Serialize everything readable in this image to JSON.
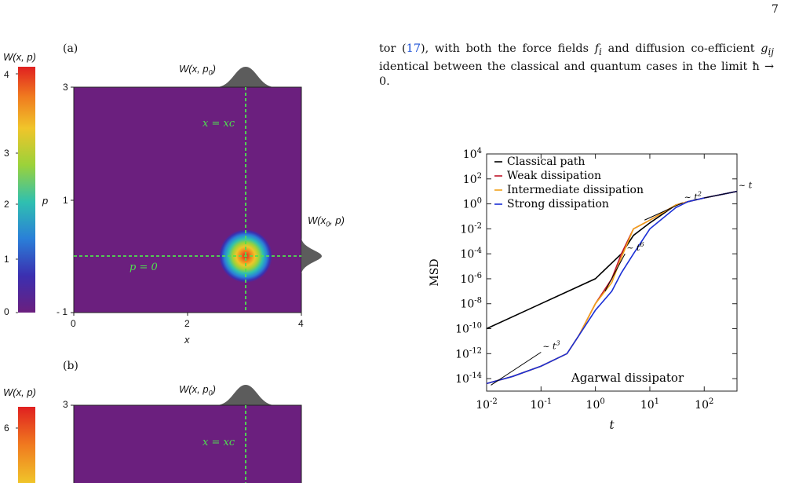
{
  "page_number": "7",
  "body_text": {
    "part1": "tor (",
    "ref": "17",
    "part2": "), with both the force fields ",
    "sym_f": "f",
    "sub_i": "i",
    "part3": " and diffusion co-efficient ",
    "sym_g": "g",
    "sub_ij": "ij",
    "part4": " identical between the classical and quantum cases in the limit ħ → 0."
  },
  "panel_a": {
    "tag": "(a)",
    "colorbar_title": "W(x, p)",
    "colorbar_ticks": [
      "4",
      "3",
      "2",
      "1",
      "0"
    ],
    "top_marginal_label": "W(x, p0)",
    "right_marginal_label": "W(x0, p)",
    "ylabel": "p",
    "xlabel": "x",
    "y_ticks": [
      "3",
      "1",
      "- 1"
    ],
    "x_ticks": [
      "0",
      "2",
      "4"
    ],
    "vline_label": "x = xc",
    "hline_label": "p = 0",
    "gaussian_center": {
      "x": 3,
      "p": 0
    }
  },
  "panel_b": {
    "tag": "(b)",
    "colorbar_title": "W(x, p)",
    "colorbar_ticks": [
      "6"
    ],
    "top_marginal_label": "W(x, p0)",
    "y_ticks": [
      "3"
    ],
    "vline_label": "x = xc"
  },
  "colors": {
    "background_purple": "#6b1f7e",
    "guide_green": "#4fe04f",
    "marginal_gray": "#5c5c5c",
    "classical": "#000000",
    "weak": "#c0162a",
    "intermediate": "#f2a21a",
    "strong": "#1a2fd6"
  },
  "chart_data": {
    "type": "line",
    "xlabel": "t",
    "ylabel": "MSD",
    "x_scale": "log",
    "y_scale": "log",
    "xlim": [
      0.01,
      400
    ],
    "ylim": [
      1e-15,
      10000.0
    ],
    "x_tick_labels": [
      "10^-2",
      "10^-1",
      "10^0",
      "10^1",
      "10^2"
    ],
    "y_tick_labels": [
      "10^4",
      "10^2",
      "10^0",
      "10^-2",
      "10^-4",
      "10^-6",
      "10^-8",
      "10^-10",
      "10^-12",
      "10^-14"
    ],
    "annotation": "Agarwal dissipator",
    "legend_position": "top-left",
    "series": [
      {
        "name": "Classical path",
        "color": "#000000",
        "x": [
          0.01,
          0.1,
          1,
          3,
          5,
          10,
          30,
          50,
          100,
          400
        ],
        "y": [
          1e-10,
          1e-08,
          1e-06,
          0.0001,
          0.003,
          0.03,
          0.8,
          1.5,
          3,
          10
        ]
      },
      {
        "name": "Weak dissipation",
        "color": "#c0162a",
        "x": [
          0.01,
          0.03,
          0.1,
          0.3,
          0.5,
          1,
          2,
          3,
          5,
          10,
          30,
          50,
          100,
          400
        ],
        "y": [
          4e-15,
          1.5e-14,
          1e-13,
          1e-12,
          3e-11,
          1e-08,
          1e-06,
          0.0001,
          0.01,
          0.05,
          0.8,
          1.5,
          3,
          10
        ]
      },
      {
        "name": "Intermediate dissipation",
        "color": "#f2a21a",
        "x": [
          0.01,
          0.03,
          0.1,
          0.3,
          0.5,
          1,
          2,
          3,
          5,
          10,
          30,
          50,
          100,
          400
        ],
        "y": [
          4e-15,
          1.5e-14,
          1e-13,
          1e-12,
          3e-11,
          1e-08,
          5e-07,
          5e-05,
          0.01,
          0.05,
          0.8,
          1.5,
          3,
          10
        ]
      },
      {
        "name": "Strong dissipation",
        "color": "#1a2fd6",
        "x": [
          0.01,
          0.03,
          0.1,
          0.3,
          0.5,
          1,
          2,
          3,
          5,
          10,
          30,
          50,
          100,
          400
        ],
        "y": [
          4e-15,
          1.5e-14,
          1e-13,
          1e-12,
          3e-11,
          3e-09,
          1e-07,
          3e-06,
          0.0001,
          0.01,
          0.5,
          1.5,
          3,
          10
        ]
      }
    ],
    "guide_lines": [
      {
        "label": "~ t^3",
        "x": [
          0.012,
          0.1
        ],
        "y": [
          3e-15,
          1.3e-12
        ]
      },
      {
        "label": "~ t^6",
        "x": [
          1.5,
          3.5
        ],
        "y": [
          1e-07,
          0.0001
        ]
      },
      {
        "label": "~ t^2",
        "x": [
          8,
          40
        ],
        "y": [
          0.05,
          1.2
        ]
      },
      {
        "label": "~ t",
        "x": [
          100,
          400
        ],
        "y": [
          3,
          10
        ]
      }
    ]
  }
}
